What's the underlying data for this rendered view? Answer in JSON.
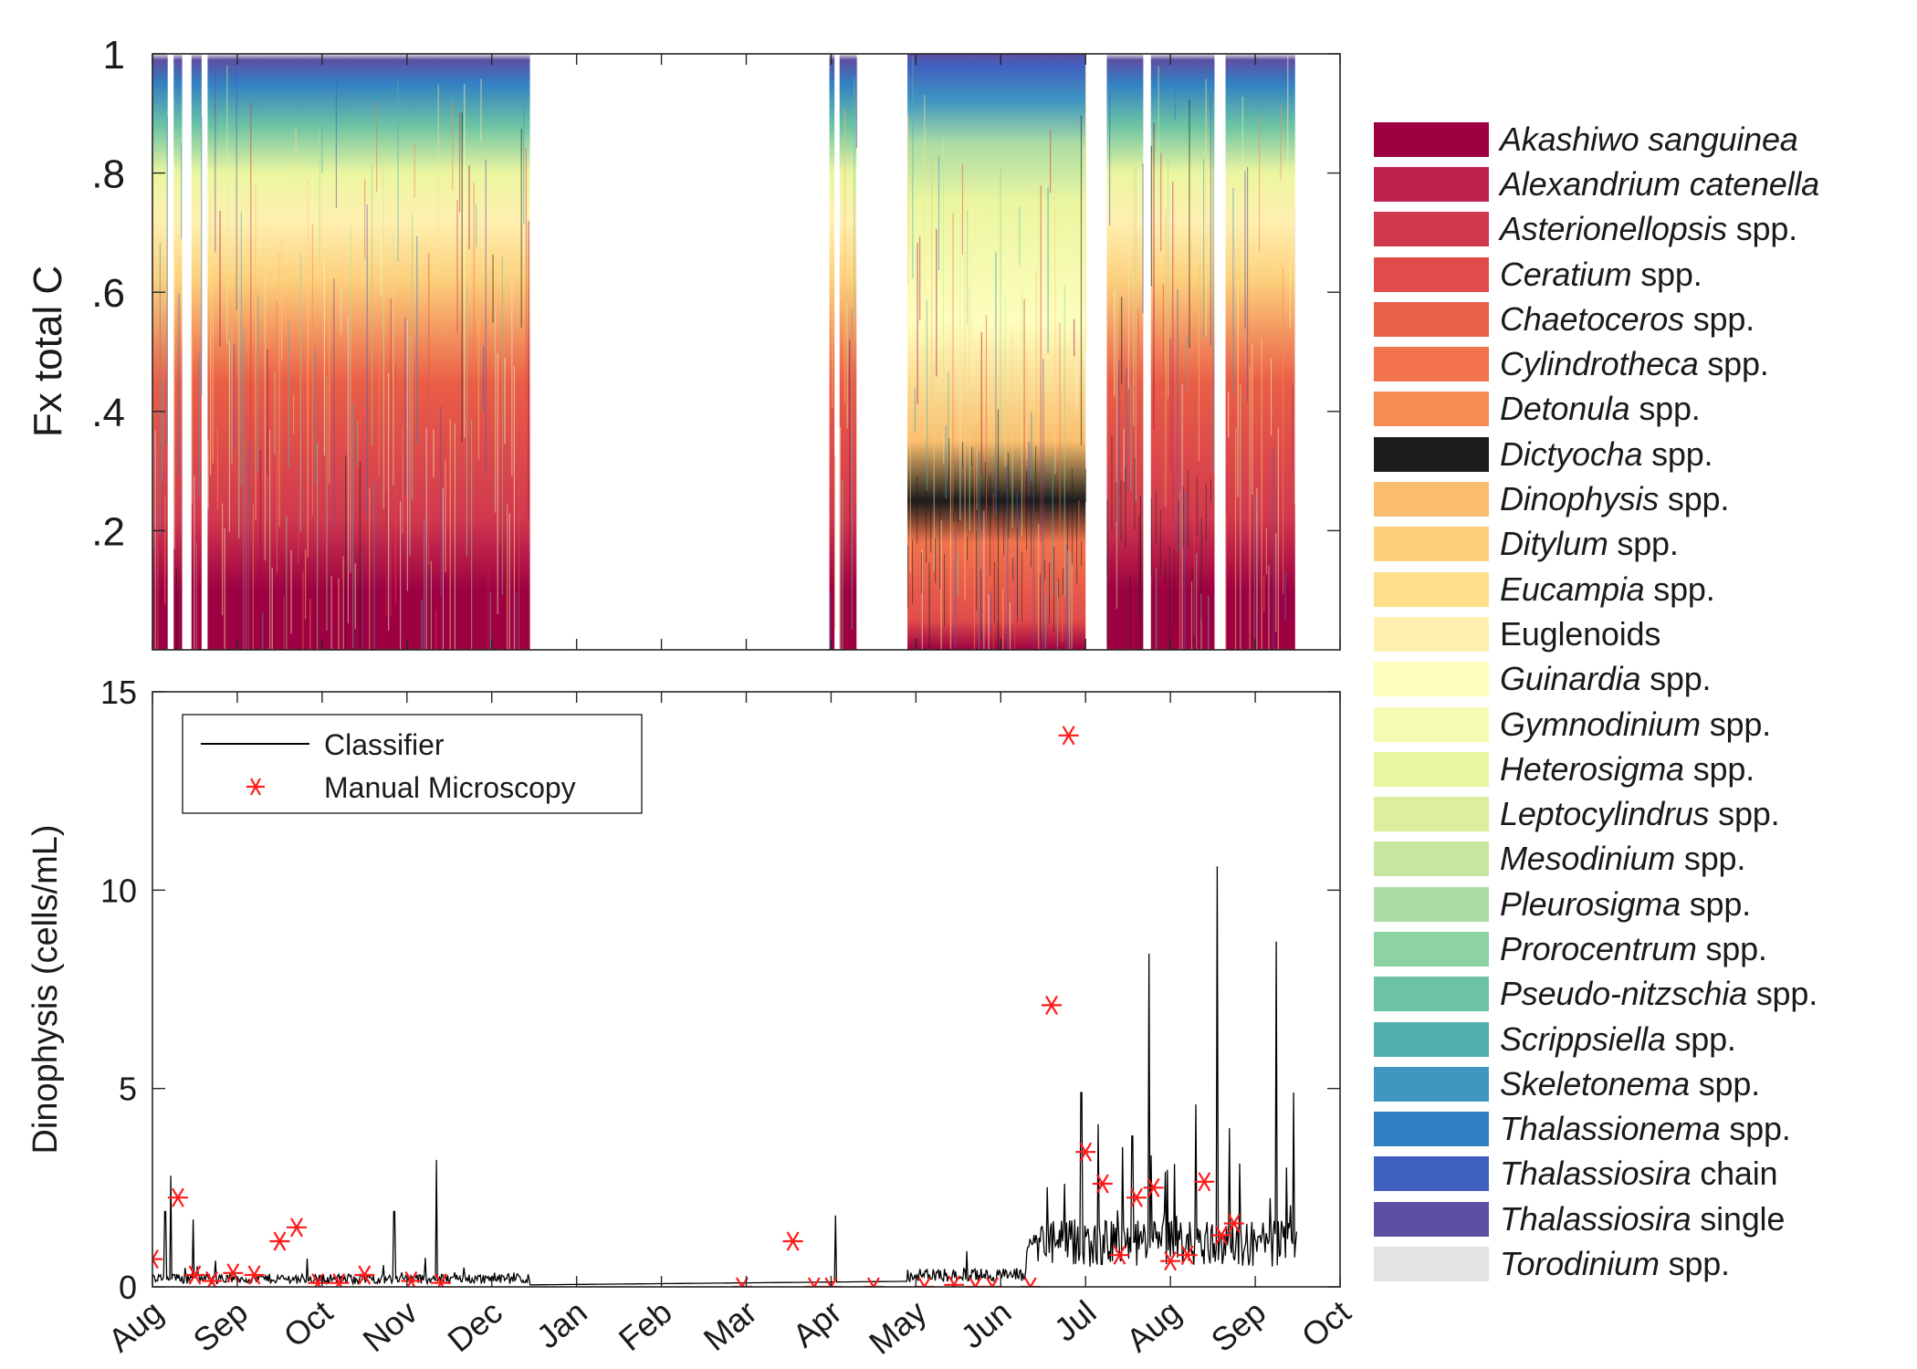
{
  "chart_data": [
    {
      "type": "area",
      "stacked": true,
      "ylabel": "Fx total C",
      "ylim": [
        0,
        1
      ],
      "yticks": [
        ".2",
        ".4",
        ".6",
        ".8",
        "1"
      ],
      "ytick_values": [
        0.2,
        0.4,
        0.6,
        0.8,
        1.0
      ],
      "x_range": [
        "Aug",
        "Oct"
      ],
      "sampling_intervals_months": [
        [
          0,
          0.18
        ],
        [
          0.25,
          0.35
        ],
        [
          0.46,
          0.58
        ],
        [
          0.65,
          4.45
        ],
        [
          7.98,
          8.04
        ],
        [
          8.1,
          8.3
        ],
        [
          8.9,
          11.0
        ],
        [
          11.25,
          11.68
        ],
        [
          11.77,
          12.52
        ],
        [
          12.65,
          13.47
        ]
      ],
      "legend_position": "right",
      "series": [
        {
          "name": "Akashiwo sanguinea",
          "italic": "Akashiwo sanguinea",
          "plain": "",
          "color": "#9e0142"
        },
        {
          "name": "Alexandrium catenella",
          "italic": "Alexandrium catenella",
          "plain": "",
          "color": "#be2350"
        },
        {
          "name": "Asterionellopsis spp.",
          "italic": "Asterionellopsis",
          "plain": " spp.",
          "color": "#d0384e"
        },
        {
          "name": "Ceratium spp.",
          "italic": "Ceratium",
          "plain": " spp.",
          "color": "#e04c4a"
        },
        {
          "name": "Chaetoceros spp.",
          "italic": "Chaetoceros",
          "plain": " spp.",
          "color": "#ea5f47"
        },
        {
          "name": "Cylindrotheca spp.",
          "italic": "Cylindrotheca",
          "plain": " spp.",
          "color": "#f2734c"
        },
        {
          "name": "Detonula spp.",
          "italic": "Detonula",
          "plain": " spp.",
          "color": "#f88d52"
        },
        {
          "name": "Dictyocha spp.",
          "italic": "Dictyocha",
          "plain": " spp.",
          "color": "#1c1c1c"
        },
        {
          "name": "Dinophysis spp.",
          "italic": "Dinophysis",
          "plain": " spp.",
          "color": "#fbbe6e"
        },
        {
          "name": "Ditylum spp.",
          "italic": "Ditylum",
          "plain": " spp.",
          "color": "#fdd07c"
        },
        {
          "name": "Eucampia spp.",
          "italic": "Eucampia",
          "plain": " spp.",
          "color": "#fee08b"
        },
        {
          "name": "Euglenoids",
          "italic": "",
          "plain": "Euglenoids",
          "color": "#fff0b0"
        },
        {
          "name": "Guinardia spp.",
          "italic": "Guinardia",
          "plain": " spp.",
          "color": "#fefebd"
        },
        {
          "name": "Gymnodinium spp.",
          "italic": "Gymnodinium",
          "plain": " spp.",
          "color": "#f6fbb4"
        },
        {
          "name": "Heterosigma spp.",
          "italic": "Heterosigma",
          "plain": " spp.",
          "color": "#ebf6a0"
        },
        {
          "name": "Leptocylindrus spp.",
          "italic": "Leptocylindrus",
          "plain": " spp.",
          "color": "#dcef9c"
        },
        {
          "name": "Mesodinium spp.",
          "italic": "Mesodinium",
          "plain": " spp.",
          "color": "#c7e6a0"
        },
        {
          "name": "Pleurosigma spp.",
          "italic": "Pleurosigma",
          "plain": " spp.",
          "color": "#abdda4"
        },
        {
          "name": "Prorocentrum spp.",
          "italic": "Prorocentrum",
          "plain": " spp.",
          "color": "#8cd2a3"
        },
        {
          "name": "Pseudo-nitzschia spp.",
          "italic": "Pseudo-nitzschia",
          "plain": " spp.",
          "color": "#6cc3a4"
        },
        {
          "name": "Scrippsiella spp.",
          "italic": "Scrippsiella",
          "plain": " spp.",
          "color": "#52b0ae"
        },
        {
          "name": "Skeletonema spp.",
          "italic": "Skeletonema",
          "plain": " spp.",
          "color": "#3f97c1"
        },
        {
          "name": "Thalassionema spp.",
          "italic": "Thalassionema",
          "plain": " spp.",
          "color": "#3280c3"
        },
        {
          "name": "Thalassiosira chain",
          "italic": "Thalassiosira",
          "plain": " chain",
          "color": "#4060c0"
        },
        {
          "name": "Thalassiosira single",
          "italic": "Thalassiosira",
          "plain": " single",
          "color": "#5e4fa2"
        },
        {
          "name": "Torodinium spp.",
          "italic": "Torodinium",
          "plain": " spp.",
          "color": "#e3e3e3"
        }
      ]
    },
    {
      "type": "line",
      "ylabel": "Dinophysis (cells/mL)",
      "ylim": [
        0,
        15
      ],
      "yticks": [
        "0",
        "5",
        "10",
        "15"
      ],
      "ytick_values": [
        0,
        5,
        10,
        15
      ],
      "xticks": [
        "Aug",
        "Sep",
        "Oct",
        "Nov",
        "Dec",
        "Jan",
        "Feb",
        "Mar",
        "Apr",
        "May",
        "Jun",
        "Jul",
        "Aug",
        "Sep",
        "Oct"
      ],
      "xtick_values": [
        0,
        1,
        2,
        3,
        4,
        5,
        6,
        7,
        8,
        9,
        10,
        11,
        12,
        13,
        14
      ],
      "legend_position": "top-left",
      "series": [
        {
          "name": "Classifier",
          "color": "#000000",
          "peaks": [
            [
              0.15,
              1.9
            ],
            [
              0.22,
              2.8
            ],
            [
              0.48,
              1.7
            ],
            [
              2.85,
              1.9
            ],
            [
              3.35,
              3.2
            ],
            [
              8.05,
              1.8
            ],
            [
              9.6,
              0.9
            ],
            [
              10.4,
              1.1
            ],
            [
              10.75,
              2.6
            ],
            [
              10.95,
              4.9
            ],
            [
              11.15,
              4.1
            ],
            [
              11.55,
              3.8
            ],
            [
              11.75,
              8.4
            ],
            [
              12.05,
              3.1
            ],
            [
              12.3,
              4.6
            ],
            [
              12.55,
              10.6
            ],
            [
              12.7,
              4.0
            ],
            [
              13.25,
              8.7
            ],
            [
              13.45,
              4.9
            ]
          ]
        },
        {
          "name": "Manual Microscopy",
          "color": "#ff1a1a",
          "marker": "asterisk",
          "points": [
            [
              0.0,
              0.7
            ],
            [
              0.3,
              2.25
            ],
            [
              0.5,
              0.3
            ],
            [
              0.7,
              0.15
            ],
            [
              0.95,
              0.35
            ],
            [
              1.2,
              0.3
            ],
            [
              1.5,
              1.15
            ],
            [
              1.7,
              1.5
            ],
            [
              1.95,
              0.1
            ],
            [
              2.2,
              0.1
            ],
            [
              2.5,
              0.3
            ],
            [
              3.05,
              0.15
            ],
            [
              3.4,
              0.1
            ],
            [
              6.95,
              0.0
            ],
            [
              7.55,
              1.15
            ],
            [
              7.8,
              0.0
            ],
            [
              8.0,
              0.0
            ],
            [
              8.5,
              0.0
            ],
            [
              9.1,
              0.0
            ],
            [
              9.45,
              0.05
            ],
            [
              9.7,
              0.0
            ],
            [
              9.9,
              0.0
            ],
            [
              10.35,
              0.0
            ],
            [
              10.6,
              7.1
            ],
            [
              10.8,
              13.9
            ],
            [
              11.0,
              3.4
            ],
            [
              11.2,
              2.6
            ],
            [
              11.4,
              0.8
            ],
            [
              11.6,
              2.25
            ],
            [
              11.8,
              2.5
            ],
            [
              12.0,
              0.65
            ],
            [
              12.2,
              0.8
            ],
            [
              12.4,
              2.65
            ],
            [
              12.6,
              1.3
            ],
            [
              12.75,
              1.6
            ]
          ]
        }
      ]
    }
  ]
}
